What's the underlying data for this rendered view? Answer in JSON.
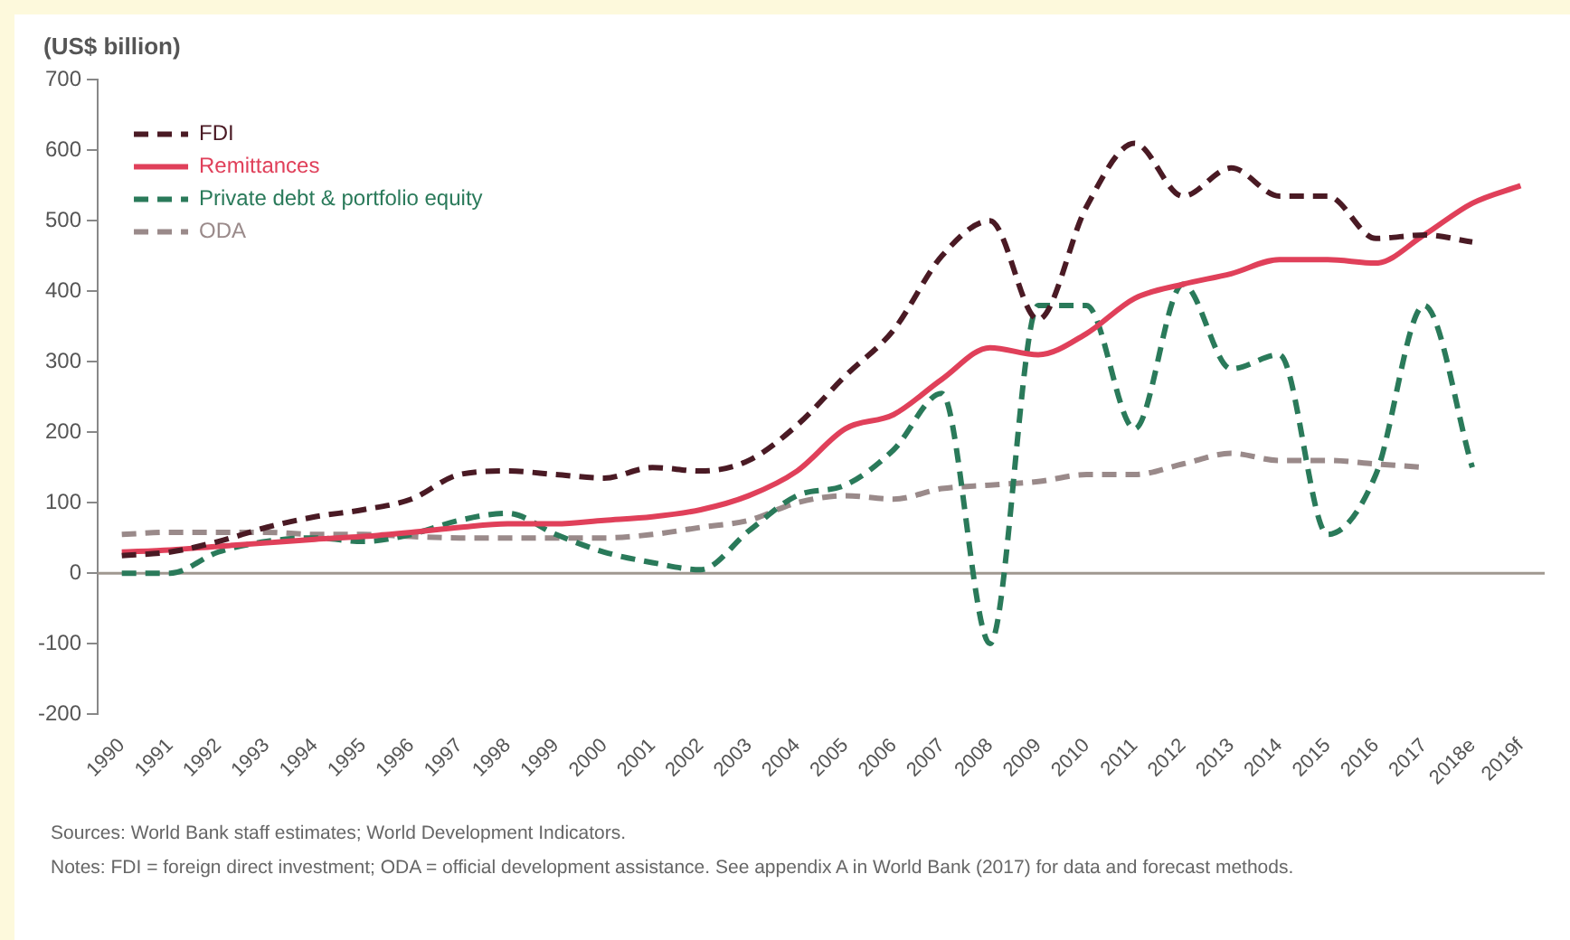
{
  "chart_data": {
    "type": "line",
    "ylabel": "(US$ billion)",
    "categories": [
      "1990",
      "1991",
      "1992",
      "1993",
      "1994",
      "1995",
      "1996",
      "1997",
      "1998",
      "1999",
      "2000",
      "2001",
      "2002",
      "2003",
      "2004",
      "2005",
      "2006",
      "2007",
      "2008",
      "2009",
      "2010",
      "2011",
      "2012",
      "2013",
      "2014",
      "2015",
      "2016",
      "2017",
      "2018e",
      "2019f"
    ],
    "series": [
      {
        "name": "FDI",
        "color": "#4a1a24",
        "line_style": "dashed",
        "values": [
          25,
          30,
          45,
          65,
          80,
          90,
          105,
          140,
          145,
          140,
          135,
          150,
          145,
          160,
          210,
          280,
          345,
          450,
          500,
          360,
          520,
          610,
          535,
          575,
          535,
          535,
          475,
          480,
          470,
          null
        ]
      },
      {
        "name": "Remittances",
        "color": "#e0405a",
        "line_style": "solid",
        "values": [
          30,
          33,
          38,
          43,
          48,
          52,
          58,
          65,
          70,
          70,
          75,
          80,
          90,
          110,
          145,
          205,
          225,
          275,
          320,
          310,
          340,
          390,
          410,
          425,
          445,
          445,
          440,
          480,
          525,
          550
        ]
      },
      {
        "name": "Private debt & portfolio equity",
        "color": "#2a7a5a",
        "line_style": "dashed",
        "values": [
          0,
          0,
          30,
          45,
          50,
          45,
          55,
          75,
          85,
          55,
          30,
          15,
          5,
          60,
          110,
          125,
          175,
          255,
          -100,
          380,
          380,
          205,
          410,
          290,
          310,
          55,
          140,
          380,
          150,
          null
        ]
      },
      {
        "name": "ODA",
        "color": "#9a8a8a",
        "line_style": "dashed",
        "values": [
          55,
          58,
          58,
          58,
          55,
          55,
          52,
          50,
          50,
          50,
          50,
          55,
          65,
          75,
          100,
          110,
          105,
          120,
          125,
          130,
          140,
          140,
          155,
          170,
          160,
          160,
          155,
          150,
          null,
          null
        ]
      }
    ],
    "ylim": [
      -200,
      700
    ],
    "yticks": [
      -200,
      -100,
      0,
      100,
      200,
      300,
      400,
      500,
      600,
      700
    ],
    "ref_lines": [
      {
        "axis": "y",
        "value": 0,
        "color": "#a09890"
      }
    ],
    "grid": false,
    "legend": "top left",
    "marker": "none",
    "annotations": [
      "Sources: World Bank staff estimates; World Development Indicators.",
      "Notes: FDI = foreign direct investment; ODA = official development assistance. See appendix A in World Bank (2017) for data and forecast methods."
    ]
  }
}
